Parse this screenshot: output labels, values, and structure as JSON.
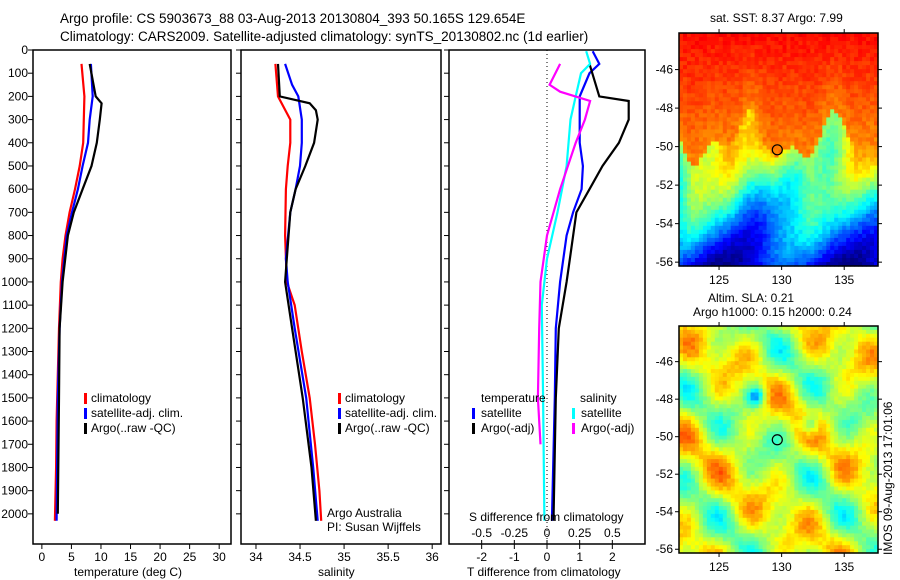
{
  "title_line1": "Argo profile: CS 5903673_88 03-Aug-2013 20130804_393 50.165S 129.654E",
  "title_line2": "Climatology: CARS2009. Satellite-adjusted climatology: synTS_20130802.nc (1d earlier)",
  "side_label": "IMOS 09-Aug-2013 17:01:06",
  "colors": {
    "red": "#ff0000",
    "blue": "#0000ff",
    "black": "#000000",
    "cyan": "#00ffff",
    "magenta": "#ff00ff"
  },
  "chart_data": [
    {
      "type": "line",
      "xlabel": "temperature (deg C)",
      "ylabel": "",
      "xlim": [
        -1.5,
        32
      ],
      "ylim": [
        0,
        2130
      ],
      "xticks": [
        0,
        5,
        10,
        15,
        20,
        25,
        30
      ],
      "yticks": [
        0,
        100,
        200,
        300,
        400,
        500,
        600,
        700,
        800,
        900,
        1000,
        1100,
        1200,
        1300,
        1400,
        1500,
        1600,
        1700,
        1800,
        1900,
        2000
      ],
      "legend": [
        "climatology",
        "satellite-adj. clim.",
        "Argo(..raw -QC)"
      ],
      "series": [
        {
          "name": "climatology",
          "color": "red",
          "depth": [
            60,
            200,
            400,
            500,
            600,
            700,
            800,
            900,
            1000,
            1200,
            1400,
            1600,
            1800,
            2030
          ],
          "values": [
            6.7,
            7.2,
            7.0,
            6.4,
            5.6,
            4.7,
            4.0,
            3.5,
            3.2,
            2.9,
            2.7,
            2.5,
            2.4,
            2.2
          ]
        },
        {
          "name": "satellite-adj. clim.",
          "color": "blue",
          "depth": [
            60,
            200,
            300,
            400,
            500,
            600,
            700,
            800,
            1000,
            1200,
            1500,
            2030
          ],
          "values": [
            8.3,
            8.6,
            8.1,
            7.8,
            6.9,
            6.1,
            5.1,
            4.2,
            3.4,
            3.0,
            2.7,
            2.5
          ]
        },
        {
          "name": "Argo(..raw -QC)",
          "color": "black",
          "depth": [
            60,
            200,
            230,
            300,
            400,
            500,
            600,
            700,
            800,
            1000,
            1200,
            1500,
            2000
          ],
          "values": [
            8.1,
            9.1,
            10.1,
            9.8,
            9.3,
            8.4,
            6.9,
            5.4,
            4.4,
            3.5,
            3.0,
            2.9,
            2.7
          ]
        }
      ]
    },
    {
      "type": "line",
      "xlabel": "salinity",
      "xlim": [
        33.83,
        36.1
      ],
      "ylim": [
        0,
        2130
      ],
      "xticks": [
        34,
        34.5,
        35,
        35.5,
        36
      ],
      "legend": [
        "climatology",
        "satellite-adj. clim.",
        "Argo(..raw -QC)"
      ],
      "annotation": [
        "Argo Australia",
        "PI: Susan Wijffels"
      ],
      "series": [
        {
          "name": "climatology",
          "color": "red",
          "depth": [
            60,
            200,
            300,
            400,
            500,
            600,
            800,
            1000,
            1100,
            1300,
            1500,
            1700,
            1900,
            2030
          ],
          "values": [
            34.22,
            34.25,
            34.39,
            34.39,
            34.36,
            34.34,
            34.33,
            34.35,
            34.44,
            34.52,
            34.61,
            34.67,
            34.72,
            34.74
          ]
        },
        {
          "name": "satellite-adj. clim.",
          "color": "blue",
          "depth": [
            60,
            150,
            200,
            300,
            400,
            500,
            600,
            700,
            900,
            1000,
            1200,
            1500,
            1800,
            2030
          ],
          "values": [
            34.33,
            34.41,
            34.48,
            34.52,
            34.52,
            34.5,
            34.45,
            34.39,
            34.34,
            34.36,
            34.44,
            34.57,
            34.65,
            34.7
          ]
        },
        {
          "name": "Argo(..raw -QC)",
          "color": "black",
          "depth": [
            60,
            200,
            230,
            260,
            300,
            400,
            500,
            600,
            700,
            900,
            1000,
            1200,
            1500,
            1800,
            2030
          ],
          "values": [
            34.25,
            34.27,
            34.61,
            34.68,
            34.7,
            34.66,
            34.56,
            34.45,
            34.39,
            34.35,
            34.33,
            34.41,
            34.53,
            34.63,
            34.68
          ]
        }
      ]
    },
    {
      "type": "line",
      "xlabel": "T difference from climatology",
      "xlabel2": "S difference from climatology",
      "xlim": [
        -3,
        3
      ],
      "ylim": [
        0,
        2130
      ],
      "xticks": [
        -2,
        -1,
        0,
        1,
        2
      ],
      "xticks_labels": [
        "-2",
        "-1",
        "0",
        "1",
        "2"
      ],
      "s_ticks": [
        -0.5,
        -0.25,
        0,
        0.25,
        0.5
      ],
      "s_ticks_labels": [
        "-0.5",
        "-0.25",
        "0",
        "0.25",
        "0.5"
      ],
      "legend_temperature": {
        "header": "temperature",
        "items": [
          "satellite",
          "Argo(-adj)"
        ]
      },
      "legend_salinity": {
        "header": "salinity",
        "items": [
          "satellite",
          "Argo(-adj)"
        ]
      },
      "series": [
        {
          "name": "T satellite",
          "color": "blue",
          "scale": "T",
          "depth": [
            5,
            60,
            100,
            200,
            300,
            400,
            500,
            600,
            700,
            800,
            1000,
            1200,
            1500,
            2030
          ],
          "values": [
            1.4,
            1.6,
            1.3,
            1.0,
            1.0,
            1.0,
            1.1,
            1.06,
            0.8,
            0.6,
            0.4,
            0.27,
            0.24,
            0.15
          ]
        },
        {
          "name": "T Argo(-adj)",
          "color": "black",
          "scale": "T",
          "depth": [
            60,
            200,
            220,
            300,
            400,
            500,
            600,
            700,
            900,
            1000,
            1200,
            1500,
            2030
          ],
          "values": [
            1.3,
            1.6,
            2.5,
            2.5,
            2.2,
            1.7,
            1.3,
            0.9,
            0.7,
            0.6,
            0.36,
            0.27,
            0.2
          ]
        },
        {
          "name": "S satellite",
          "color": "cyan",
          "scale": "S",
          "depth": [
            5,
            60,
            100,
            200,
            300,
            500,
            700,
            900,
            1100,
            1500,
            2030
          ],
          "values": [
            0.3,
            0.33,
            0.26,
            0.22,
            0.18,
            0.15,
            0.08,
            0.0,
            -0.04,
            -0.03,
            -0.02
          ]
        },
        {
          "name": "S Argo(-adj)",
          "color": "magenta",
          "scale": "S",
          "depth": [
            60,
            150,
            180,
            220,
            300,
            400,
            600,
            800,
            1000,
            1200,
            1500,
            1700
          ],
          "values": [
            0.1,
            0.02,
            0.1,
            0.33,
            0.29,
            0.22,
            0.1,
            0.0,
            -0.05,
            -0.06,
            -0.07,
            -0.05
          ]
        }
      ]
    },
    {
      "type": "heatmap",
      "title": "sat. SST: 8.37 Argo: 7.99",
      "xticks": [
        125,
        130,
        135
      ],
      "yticks": [
        -46,
        -48,
        -50,
        -52,
        -54,
        -56
      ],
      "xlim": [
        121.8,
        137.7
      ],
      "ylim": [
        -56.2,
        -44.1
      ],
      "marker": {
        "lon": 129.654,
        "lat": -50.165
      }
    },
    {
      "type": "heatmap",
      "title_line1": "Altim. SLA: 0.21",
      "title_line2": "Argo h1000: 0.15 h2000: 0.24",
      "xticks": [
        125,
        130,
        135
      ],
      "yticks": [
        -46,
        -48,
        -50,
        -52,
        -54,
        -56
      ],
      "xlim": [
        121.8,
        137.7
      ],
      "ylim": [
        -56.2,
        -44.1
      ],
      "marker": {
        "lon": 129.654,
        "lat": -50.165
      }
    }
  ]
}
